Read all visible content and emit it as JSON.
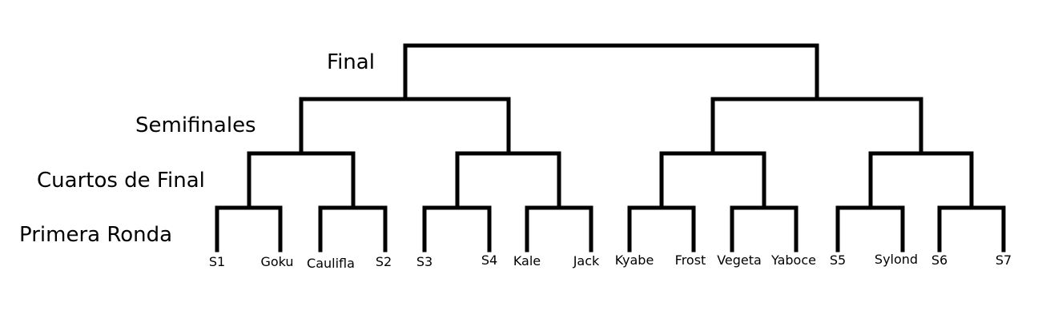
{
  "rounds": {
    "final": "Final",
    "semifinals": "Semifinales",
    "quarterfinals": "Cuartos de Final",
    "first_round": "Primera Ronda"
  },
  "players": [
    "S1",
    "Goku",
    "Caulifla",
    "S2",
    "S3",
    "S4",
    "Kale",
    "Jack",
    "Kyabe",
    "Frost",
    "Vegeta",
    "Yaboce",
    "S5",
    "Sylond",
    "S6",
    "S7"
  ],
  "colors": {
    "line": "#000000",
    "background": "#ffffff"
  }
}
